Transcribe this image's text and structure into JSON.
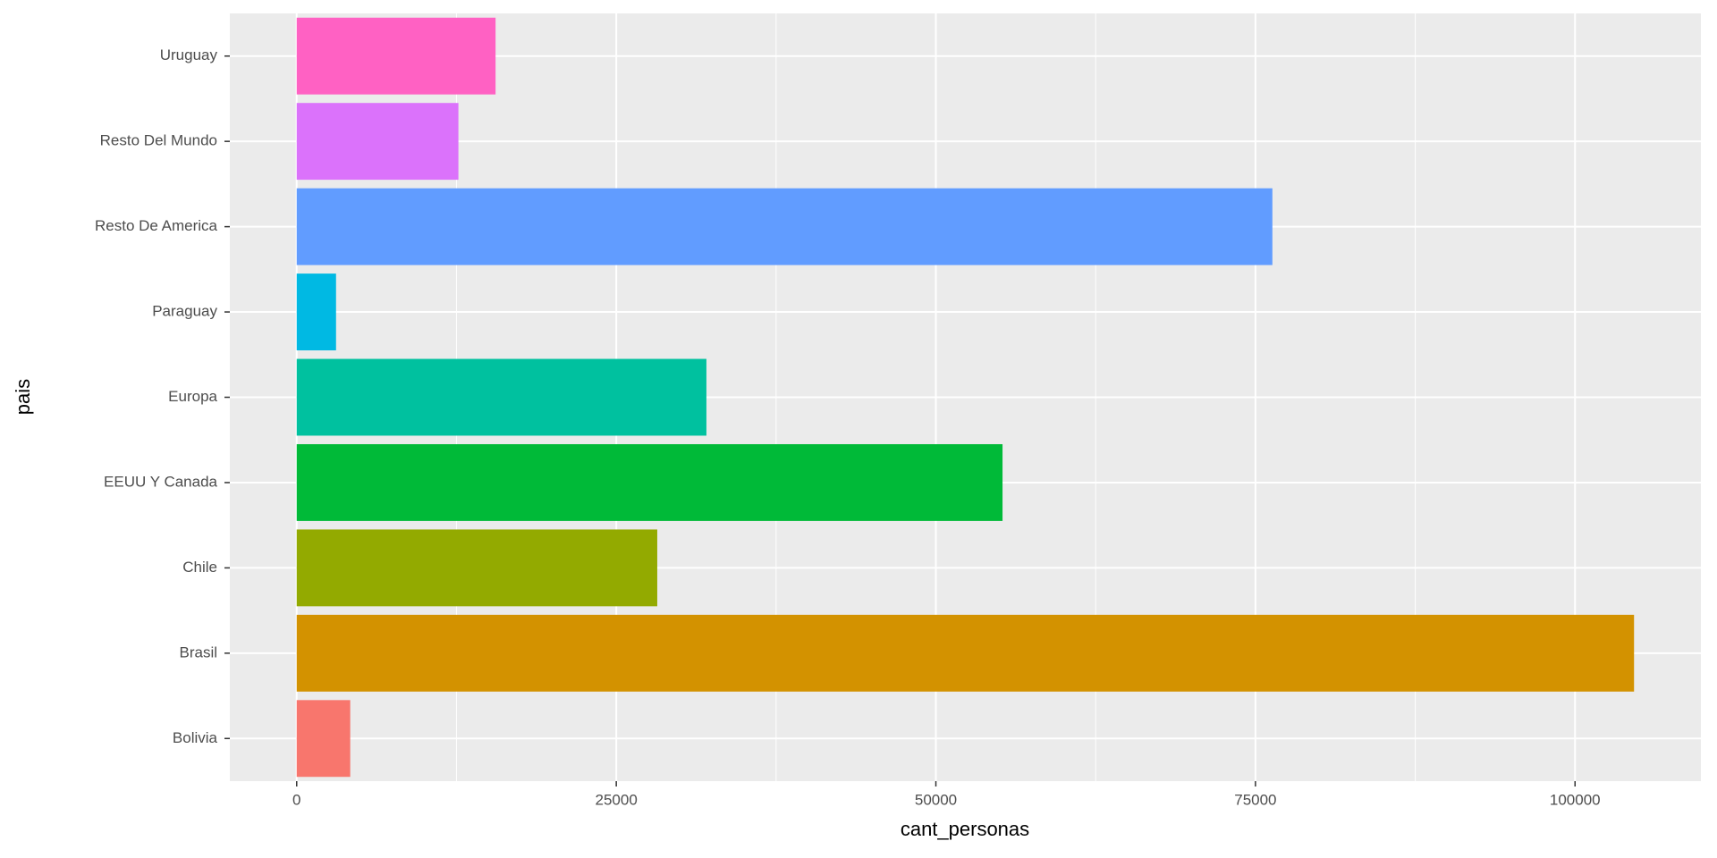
{
  "chart_data": {
    "type": "bar",
    "orientation": "horizontal",
    "x_label": "cant_personas",
    "y_label": "pais",
    "categories": [
      "Bolivia",
      "Brasil",
      "Chile",
      "EEUU Y Canada",
      "Europa",
      "Paraguay",
      "Resto De America",
      "Resto Del Mundo",
      "Uruguay"
    ],
    "values": [
      4188,
      104615,
      28205,
      55214,
      32051,
      3077,
      76325,
      12650,
      15556
    ],
    "colors": [
      "#F8766D",
      "#D39200",
      "#93AA00",
      "#00BA38",
      "#00C19F",
      "#00B9E3",
      "#619CFF",
      "#DB72FB",
      "#FF61C3"
    ],
    "xlim": [
      -5231,
      109846
    ],
    "xticks": [
      0,
      25000,
      50000,
      75000,
      100000
    ],
    "x_minor_ticks": [
      12500,
      37500,
      62500,
      87500
    ],
    "grid": true
  }
}
